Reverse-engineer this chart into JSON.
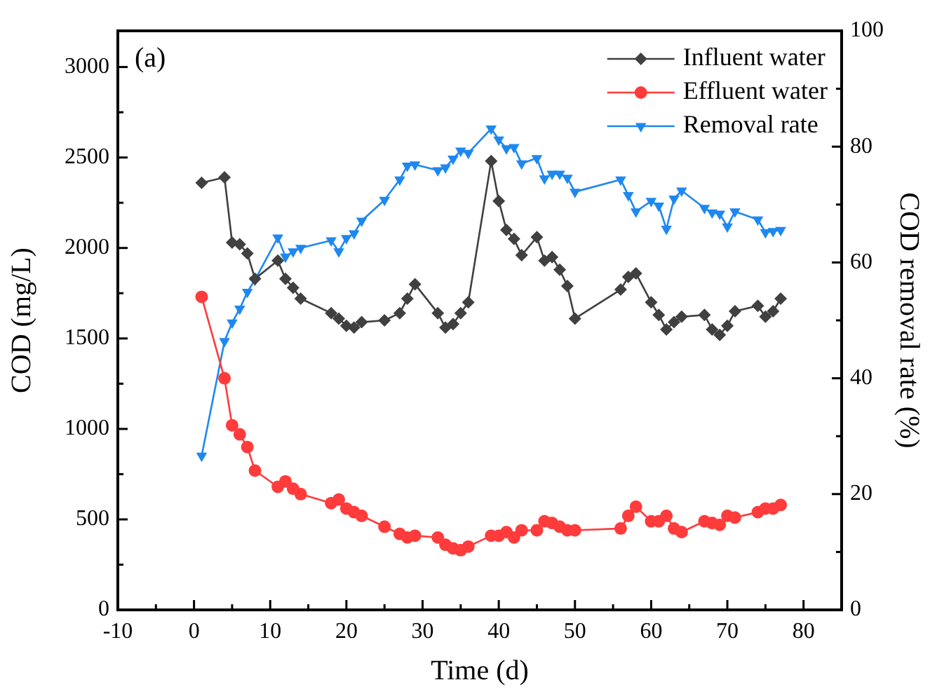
{
  "chart_data": {
    "type": "line",
    "xlabel": "Time (d)",
    "ylabel": "COD (mg/L)",
    "y2label": "COD removal rate (%)",
    "annotations": [
      "(a)"
    ],
    "x": [
      1,
      4,
      5,
      6,
      7,
      8,
      11,
      12,
      13,
      14,
      18,
      19,
      20,
      21,
      22,
      25,
      27,
      28,
      29,
      32,
      33,
      34,
      35,
      36,
      39,
      40,
      41,
      42,
      43,
      45,
      46,
      47,
      48,
      49,
      50,
      56,
      57,
      58,
      60,
      61,
      62,
      63,
      64,
      67,
      68,
      69,
      70,
      71,
      74,
      75,
      76,
      77
    ],
    "series": [
      {
        "name": "Influent water",
        "color": "#404040",
        "marker": "diamond",
        "values": [
          2360,
          2390,
          2030,
          2020,
          1970,
          1830,
          1930,
          1830,
          1780,
          1720,
          1640,
          1610,
          1570,
          1560,
          1590,
          1600,
          1640,
          1720,
          1800,
          1640,
          1560,
          1580,
          1640,
          1700,
          2480,
          2260,
          2100,
          2050,
          1960,
          2060,
          1930,
          1950,
          1880,
          1790,
          1610,
          1770,
          1840,
          1860,
          1700,
          1630,
          1550,
          1590,
          1620,
          1630,
          1550,
          1520,
          1570,
          1650,
          1680,
          1620,
          1650,
          1720
        ]
      },
      {
        "name": "Effluent water",
        "color": "#ff3b3b",
        "marker": "circle",
        "values": [
          1730,
          1280,
          1020,
          970,
          900,
          770,
          680,
          710,
          670,
          640,
          590,
          610,
          560,
          540,
          520,
          460,
          420,
          400,
          410,
          400,
          360,
          340,
          330,
          350,
          410,
          410,
          430,
          400,
          440,
          440,
          490,
          480,
          460,
          440,
          440,
          450,
          520,
          570,
          490,
          490,
          520,
          450,
          430,
          490,
          480,
          470,
          520,
          510,
          540,
          560,
          560,
          580
        ]
      },
      {
        "name": "Removal rate",
        "color": "#1e88f0",
        "marker": "triangle-down",
        "axis": "y2",
        "values": [
          26.6,
          46.4,
          49.6,
          52,
          54.9,
          57,
          64.3,
          61,
          61.9,
          62.5,
          63.8,
          61.9,
          64.2,
          65,
          67.2,
          70.8,
          74.3,
          76.7,
          76.9,
          75.9,
          76.4,
          77.9,
          79.3,
          78.9,
          83.1,
          81.2,
          79.7,
          79.9,
          77.1,
          78,
          74.5,
          75.3,
          75.3,
          74.6,
          72.2,
          74.3,
          71.6,
          68.8,
          70.6,
          69.8,
          65.8,
          71,
          72.4,
          69.4,
          68.6,
          68.4,
          66.2,
          68.8,
          67.4,
          65.2,
          65.4,
          65.6
        ]
      }
    ],
    "xlim": [
      -10,
      85
    ],
    "xticks": [
      -10,
      {
        "value": -5,
        "label": null
      },
      0,
      {
        "value": 5,
        "label": null
      },
      10,
      {
        "value": 15,
        "label": null
      },
      20,
      {
        "value": 25,
        "label": null
      },
      30,
      {
        "value": 35,
        "label": null
      },
      40,
      {
        "value": 45,
        "label": null
      },
      50,
      {
        "value": 55,
        "label": null
      },
      60,
      {
        "value": 65,
        "label": null
      },
      70,
      {
        "value": 75,
        "label": null
      },
      80
    ],
    "ylim": [
      0,
      3200
    ],
    "yticks": [
      0,
      {
        "value": 250,
        "label": null
      },
      500,
      {
        "value": 750,
        "label": null
      },
      1000,
      {
        "value": 1250,
        "label": null
      },
      1500,
      {
        "value": 1750,
        "label": null
      },
      2000,
      {
        "value": 2250,
        "label": null
      },
      2500,
      {
        "value": 2750,
        "label": null
      },
      3000
    ],
    "y2lim": [
      0,
      100
    ],
    "y2ticks": [
      0,
      {
        "value": 10,
        "label": null
      },
      20,
      {
        "value": 30,
        "label": null
      },
      40,
      {
        "value": 50,
        "label": null
      },
      60,
      {
        "value": 70,
        "label": null
      },
      80,
      {
        "value": 90,
        "label": null
      },
      100
    ],
    "grid": false,
    "legend": "top right",
    "line_style": "solid"
  }
}
